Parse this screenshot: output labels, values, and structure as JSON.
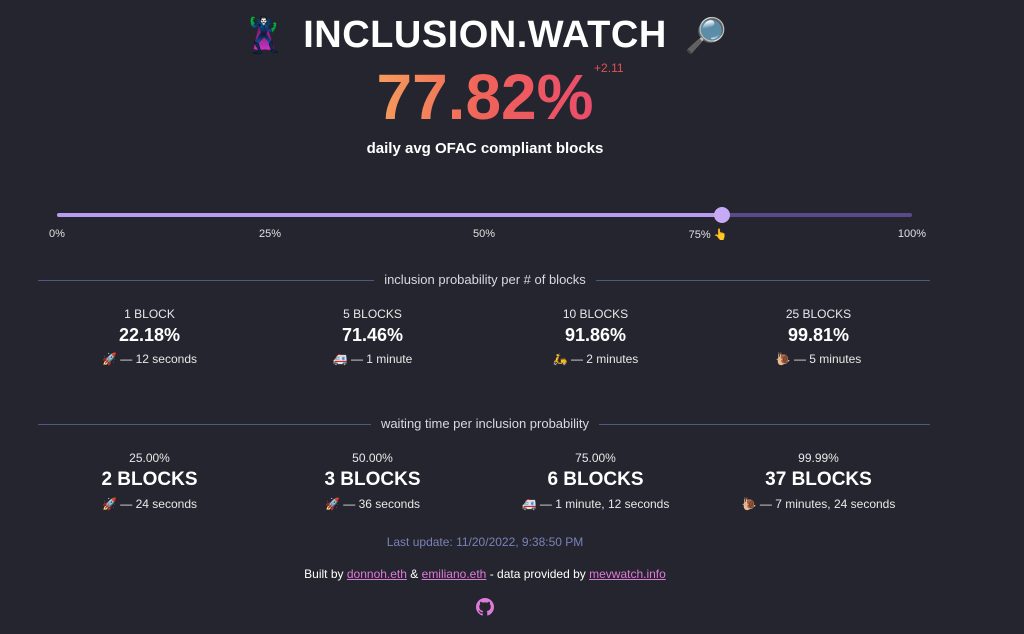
{
  "header": {
    "title": "INCLUSION.WATCH",
    "left_emoji": "🦹",
    "right_emoji": "🔎"
  },
  "hero": {
    "value": "77.82%",
    "delta": "+2.11",
    "subtitle": "daily avg OFAC compliant blocks"
  },
  "slider": {
    "value_percent": 77.82,
    "ticks": [
      "0%",
      "25%",
      "50%",
      "75% 👆",
      "100%"
    ]
  },
  "section1": {
    "label": "inclusion probability per # of blocks",
    "items": [
      {
        "top": "1 BLOCK",
        "mid": "22.18%",
        "bot": "🚀 — 12 seconds"
      },
      {
        "top": "5 BLOCKS",
        "mid": "71.46%",
        "bot": "🚑 — 1 minute"
      },
      {
        "top": "10 BLOCKS",
        "mid": "91.86%",
        "bot": "🛵 — 2 minutes"
      },
      {
        "top": "25 BLOCKS",
        "mid": "99.81%",
        "bot": "🐌 — 5 minutes"
      }
    ]
  },
  "section2": {
    "label": "waiting time per inclusion probability",
    "items": [
      {
        "top": "25.00%",
        "mid": "2 BLOCKS",
        "bot": "🚀 — 24 seconds"
      },
      {
        "top": "50.00%",
        "mid": "3 BLOCKS",
        "bot": "🚀 — 36 seconds"
      },
      {
        "top": "75.00%",
        "mid": "6 BLOCKS",
        "bot": "🚑 — 1 minute, 12 seconds"
      },
      {
        "top": "99.99%",
        "mid": "37 BLOCKS",
        "bot": "🐌 — 7 minutes, 24 seconds"
      }
    ]
  },
  "last_update": "Last update: 11/20/2022, 9:38:50 PM",
  "footer": {
    "built_by": "Built by",
    "author1": "donnoh.eth",
    "amp": "&",
    "author2": "emiliano.eth",
    "data_text": "- data provided by",
    "source": "mevwatch.info"
  },
  "colors": {
    "background": "#25252f",
    "accent": "#b89cf0",
    "link": "#e07ad8",
    "delta": "#e05252"
  }
}
